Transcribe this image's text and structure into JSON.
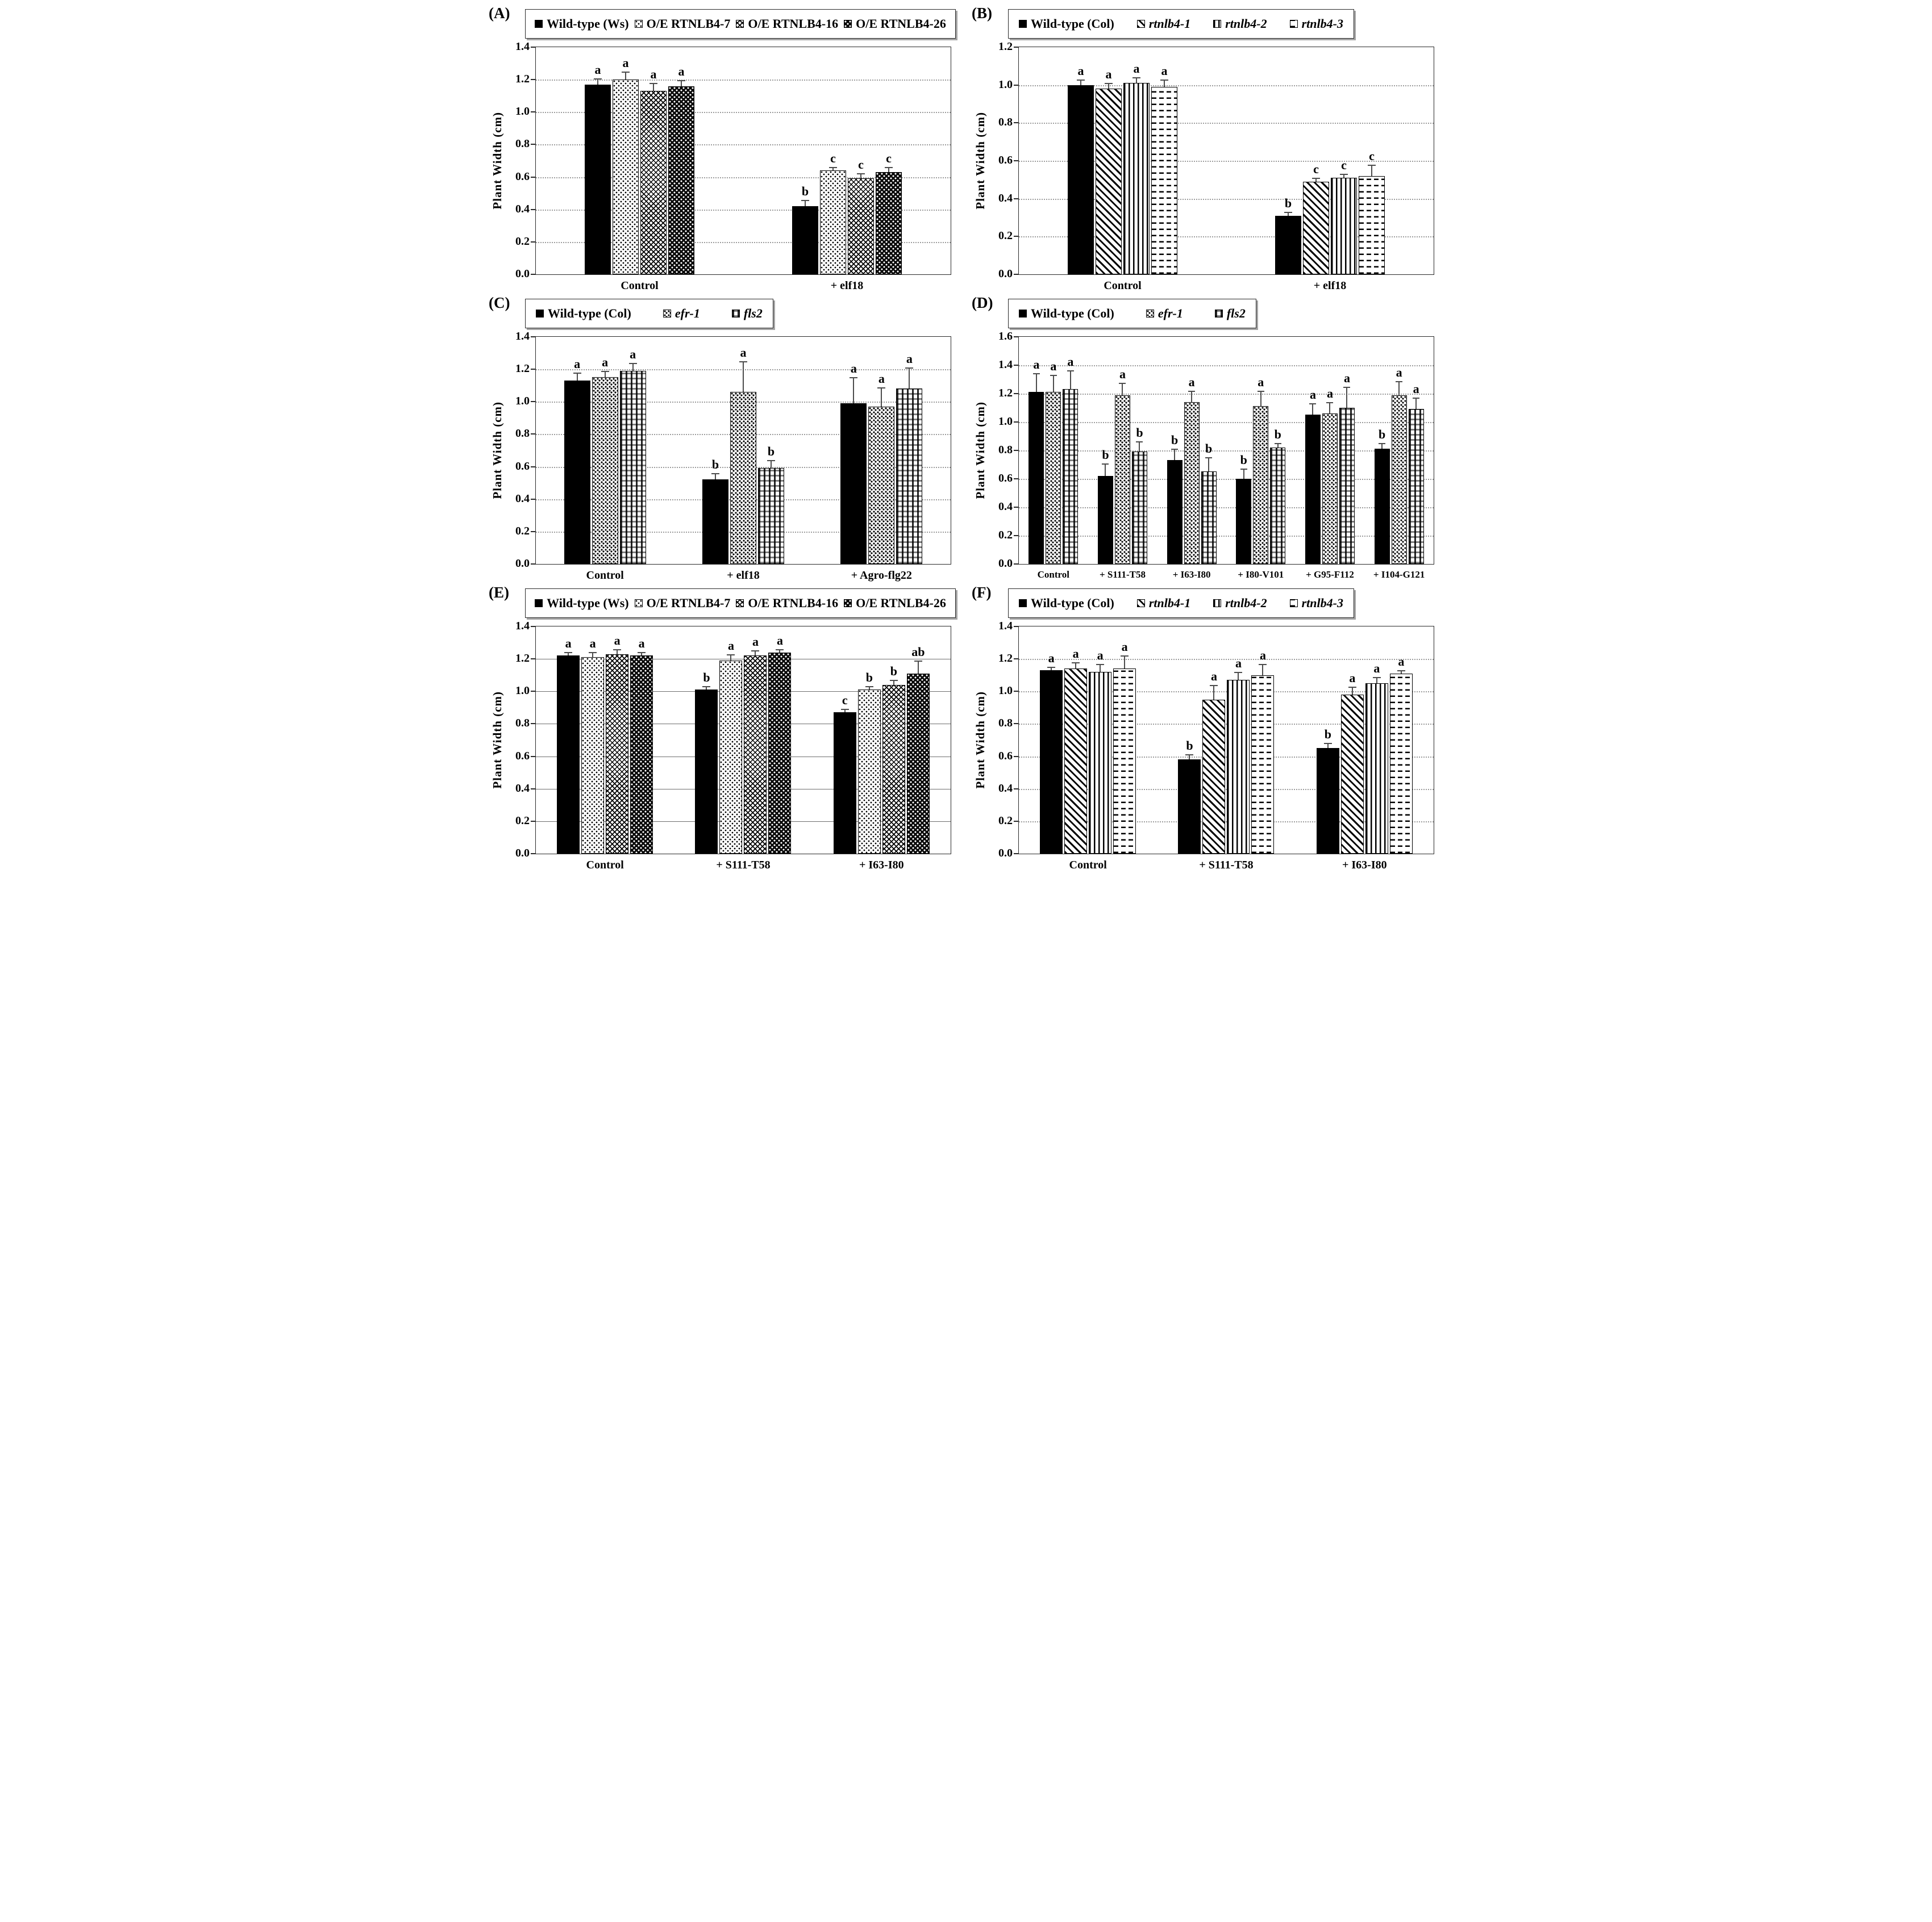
{
  "colors": {
    "ink": "#000000",
    "grid_dotted": "#9c9c9c",
    "grid_solid": "#6f6f6f",
    "error_bar": "#4c4c4c",
    "background": "#ffffff"
  },
  "chart_data": [
    {
      "type": "bar",
      "panel_label": "(A)",
      "ylabel": "Plant Width (cm)",
      "ylim": [
        0,
        1.4
      ],
      "ystep": 0.2,
      "grid": "dotted",
      "legend_position": "top",
      "categories": [
        "Control",
        "+ elf18"
      ],
      "series": [
        {
          "name": "Wild-type (Ws)",
          "pattern": "solid",
          "italic": false,
          "values": [
            1.17,
            0.42
          ],
          "errors": [
            0.04,
            0.04
          ],
          "letters": [
            "a",
            "b"
          ]
        },
        {
          "name": "O/E RTNLB4-7",
          "pattern": "dots",
          "italic": false,
          "values": [
            1.2,
            0.64
          ],
          "errors": [
            0.05,
            0.02
          ],
          "letters": [
            "a",
            "c"
          ]
        },
        {
          "name": "O/E RTNLB4-16",
          "pattern": "herringbone",
          "italic": false,
          "values": [
            1.13,
            0.59
          ],
          "errors": [
            0.05,
            0.03
          ],
          "letters": [
            "a",
            "c"
          ]
        },
        {
          "name": "O/E RTNLB4-26",
          "pattern": "darkdots",
          "italic": false,
          "values": [
            1.16,
            0.63
          ],
          "errors": [
            0.04,
            0.03
          ],
          "letters": [
            "a",
            "c"
          ]
        }
      ]
    },
    {
      "type": "bar",
      "panel_label": "(B)",
      "ylabel": "Plant Width (cm)",
      "ylim": [
        0,
        1.2
      ],
      "ystep": 0.2,
      "grid": "dotted",
      "legend_position": "top",
      "categories": [
        "Control",
        "+ elf18"
      ],
      "series": [
        {
          "name": "Wild-type (Col)",
          "pattern": "solid",
          "italic": false,
          "values": [
            1.0,
            0.31
          ],
          "errors": [
            0.03,
            0.02
          ],
          "letters": [
            "a",
            "b"
          ]
        },
        {
          "name": "rtnlb4-1",
          "pattern": "diag",
          "italic": true,
          "values": [
            0.98,
            0.49
          ],
          "errors": [
            0.03,
            0.02
          ],
          "letters": [
            "a",
            "c"
          ]
        },
        {
          "name": "rtnlb4-2",
          "pattern": "vert",
          "italic": true,
          "values": [
            1.01,
            0.51
          ],
          "errors": [
            0.03,
            0.02
          ],
          "letters": [
            "a",
            "c"
          ]
        },
        {
          "name": "rtnlb4-3",
          "pattern": "hdash",
          "italic": true,
          "values": [
            0.99,
            0.52
          ],
          "errors": [
            0.04,
            0.06
          ],
          "letters": [
            "a",
            "c"
          ]
        }
      ]
    },
    {
      "type": "bar",
      "panel_label": "(C)",
      "ylabel": "Plant Width (cm)",
      "ylim": [
        0,
        1.4
      ],
      "ystep": 0.2,
      "grid": "dotted",
      "legend_position": "top",
      "categories": [
        "Control",
        "+ elf18",
        "+ Agro-flg22"
      ],
      "series": [
        {
          "name": "Wild-type (Col)",
          "pattern": "solid",
          "italic": false,
          "values": [
            1.13,
            0.52,
            0.99
          ],
          "errors": [
            0.05,
            0.04,
            0.16
          ],
          "letters": [
            "a",
            "b",
            "a"
          ]
        },
        {
          "name": "efr-1",
          "pattern": "speck",
          "italic": true,
          "values": [
            1.15,
            1.06,
            0.97
          ],
          "errors": [
            0.04,
            0.19,
            0.12
          ],
          "letters": [
            "a",
            "a",
            "a"
          ]
        },
        {
          "name": "fls2",
          "pattern": "plaid",
          "italic": true,
          "values": [
            1.19,
            0.59,
            1.08
          ],
          "errors": [
            0.05,
            0.05,
            0.13
          ],
          "letters": [
            "a",
            "b",
            "a"
          ]
        }
      ]
    },
    {
      "type": "bar",
      "panel_label": "(D)",
      "ylabel": "Plant Width (cm)",
      "ylim": [
        0,
        1.6
      ],
      "ystep": 0.2,
      "grid": "dotted",
      "legend_position": "top",
      "categories": [
        "Control",
        "+ S111-T58",
        "+ I63-I80",
        "+ I80-V101",
        "+ G95-F112",
        "+ I104-G121"
      ],
      "series": [
        {
          "name": "Wild-type (Col)",
          "pattern": "solid",
          "italic": false,
          "values": [
            1.21,
            0.62,
            0.73,
            0.6,
            1.05,
            0.81
          ],
          "errors": [
            0.13,
            0.09,
            0.08,
            0.07,
            0.08,
            0.04
          ],
          "letters": [
            "a",
            "b",
            "b",
            "b",
            "a",
            "b"
          ]
        },
        {
          "name": "efr-1",
          "pattern": "speck",
          "italic": true,
          "values": [
            1.21,
            1.19,
            1.14,
            1.11,
            1.06,
            1.19
          ],
          "errors": [
            0.12,
            0.09,
            0.08,
            0.11,
            0.08,
            0.1
          ],
          "letters": [
            "a",
            "a",
            "a",
            "a",
            "a",
            "a"
          ]
        },
        {
          "name": "fls2",
          "pattern": "plaid",
          "italic": true,
          "values": [
            1.23,
            0.79,
            0.65,
            0.82,
            1.1,
            1.09
          ],
          "errors": [
            0.13,
            0.07,
            0.1,
            0.03,
            0.15,
            0.08
          ],
          "letters": [
            "a",
            "b",
            "b",
            "b",
            "a",
            "a"
          ]
        }
      ]
    },
    {
      "type": "bar",
      "panel_label": "(E)",
      "ylabel": "Plant Width (cm)",
      "ylim": [
        0,
        1.4
      ],
      "ystep": 0.2,
      "grid": "solid",
      "legend_position": "top",
      "categories": [
        "Control",
        "+ S111-T58",
        "+ I63-I80"
      ],
      "series": [
        {
          "name": "Wild-type (Ws)",
          "pattern": "solid",
          "italic": false,
          "values": [
            1.22,
            1.01,
            0.87
          ],
          "errors": [
            0.02,
            0.02,
            0.02
          ],
          "letters": [
            "a",
            "b",
            "c"
          ]
        },
        {
          "name": "O/E RTNLB4-7",
          "pattern": "dots",
          "italic": false,
          "values": [
            1.21,
            1.19,
            1.01
          ],
          "errors": [
            0.03,
            0.04,
            0.02
          ],
          "letters": [
            "a",
            "a",
            "b"
          ]
        },
        {
          "name": "O/E RTNLB4-16",
          "pattern": "herringbone",
          "italic": false,
          "values": [
            1.23,
            1.22,
            1.04
          ],
          "errors": [
            0.03,
            0.03,
            0.03
          ],
          "letters": [
            "a",
            "a",
            "b"
          ]
        },
        {
          "name": "O/E RTNLB4-26",
          "pattern": "darkdots",
          "italic": false,
          "values": [
            1.22,
            1.24,
            1.11
          ],
          "errors": [
            0.02,
            0.02,
            0.08
          ],
          "letters": [
            "a",
            "a",
            "ab"
          ]
        }
      ]
    },
    {
      "type": "bar",
      "panel_label": "(F)",
      "ylabel": "Plant Width (cm)",
      "ylim": [
        0,
        1.4
      ],
      "ystep": 0.2,
      "grid": "dotted",
      "legend_position": "top",
      "categories": [
        "Control",
        "+ S111-T58",
        "+ I63-I80"
      ],
      "series": [
        {
          "name": "Wild-type (Col)",
          "pattern": "solid",
          "italic": false,
          "values": [
            1.13,
            0.58,
            0.65
          ],
          "errors": [
            0.02,
            0.03,
            0.03
          ],
          "letters": [
            "a",
            "b",
            "b"
          ]
        },
        {
          "name": "rtnlb4-1",
          "pattern": "diag",
          "italic": true,
          "values": [
            1.14,
            0.95,
            0.98
          ],
          "errors": [
            0.04,
            0.09,
            0.05
          ],
          "letters": [
            "a",
            "a",
            "a"
          ]
        },
        {
          "name": "rtnlb4-2",
          "pattern": "vert",
          "italic": true,
          "values": [
            1.12,
            1.07,
            1.05
          ],
          "errors": [
            0.05,
            0.05,
            0.04
          ],
          "letters": [
            "a",
            "a",
            "a"
          ]
        },
        {
          "name": "rtnlb4-3",
          "pattern": "hdash",
          "italic": true,
          "values": [
            1.14,
            1.1,
            1.11
          ],
          "errors": [
            0.08,
            0.07,
            0.02
          ],
          "letters": [
            "a",
            "a",
            "a"
          ]
        }
      ]
    }
  ]
}
